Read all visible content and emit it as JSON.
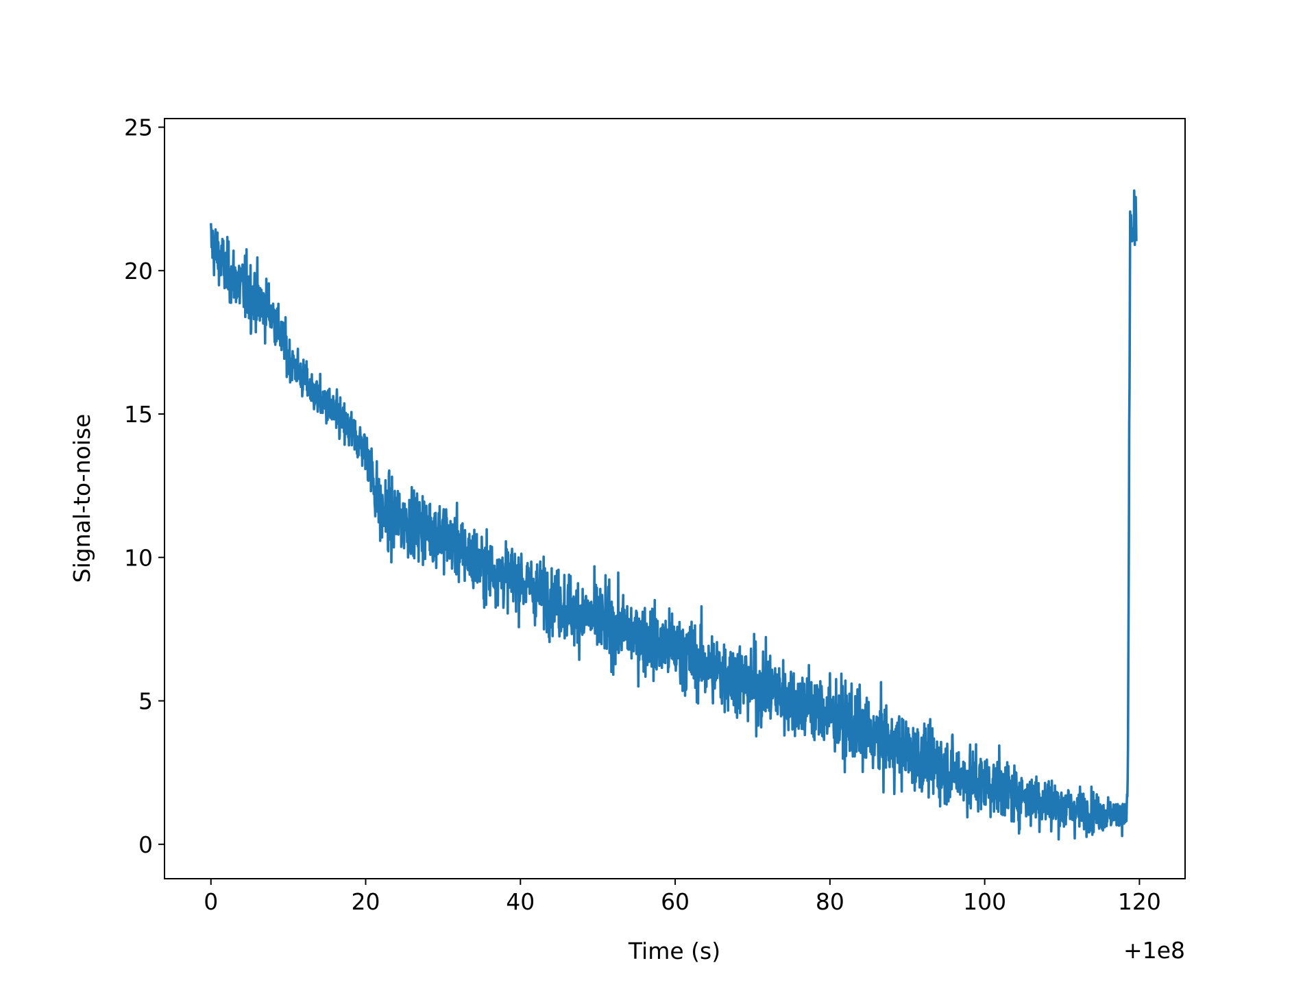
{
  "chart_data": {
    "type": "line",
    "title": "",
    "xlabel": "Time (s)",
    "ylabel": "Signal-to-noise",
    "x_offset_label": "+1e8",
    "xlim": [
      -6,
      125.9
    ],
    "ylim": [
      -1.2,
      25.3
    ],
    "xticks": [
      0,
      20,
      40,
      60,
      80,
      100,
      120
    ],
    "yticks": [
      0,
      5,
      10,
      15,
      20,
      25
    ],
    "xtick_labels": [
      "0",
      "20",
      "40",
      "60",
      "80",
      "100",
      "120"
    ],
    "ytick_labels": [
      "0",
      "5",
      "10",
      "15",
      "20",
      "25"
    ],
    "grid": false,
    "legend": false,
    "line_color": "#1f77b4",
    "series": [
      {
        "x": [
          0,
          2,
          5,
          8,
          10,
          13,
          16,
          20,
          22,
          25,
          30,
          35,
          40,
          45,
          50,
          55,
          60,
          65,
          70,
          75,
          80,
          85,
          90,
          95,
          100,
          105,
          110,
          115,
          118.3,
          118.5,
          118.8,
          119.2,
          119.6
        ],
        "y_min": [
          19.0,
          18.0,
          17.0,
          16.5,
          15.5,
          14.5,
          13.5,
          12.5,
          8.5,
          9.0,
          8.5,
          7.0,
          7.0,
          6.0,
          5.5,
          5.0,
          4.0,
          3.5,
          3.0,
          2.5,
          2.0,
          1.5,
          0.8,
          0.5,
          0.3,
          0.2,
          0.1,
          0.1,
          0.1,
          0.5,
          20.0,
          18.0,
          18.5
        ],
        "y_max": [
          22.8,
          21.8,
          21.5,
          20.0,
          18.5,
          17.0,
          16.5,
          15.5,
          13.5,
          13.5,
          13.0,
          11.5,
          11.0,
          10.5,
          10.5,
          9.5,
          9.0,
          8.5,
          8.3,
          7.5,
          7.0,
          6.5,
          5.5,
          5.0,
          4.5,
          4.0,
          3.5,
          2.5,
          2.0,
          4.8,
          22.8,
          23.2,
          24.1
        ],
        "mean": [
          21.0,
          20.0,
          19.2,
          18.5,
          17.0,
          15.8,
          15.0,
          13.8,
          11.5,
          11.3,
          10.8,
          9.7,
          9.2,
          8.4,
          7.8,
          7.3,
          6.8,
          6.1,
          5.6,
          5.1,
          4.5,
          3.8,
          3.2,
          2.6,
          2.1,
          1.7,
          1.3,
          1.1,
          1.0,
          2.0,
          21.5,
          21.2,
          21.5
        ]
      }
    ]
  }
}
